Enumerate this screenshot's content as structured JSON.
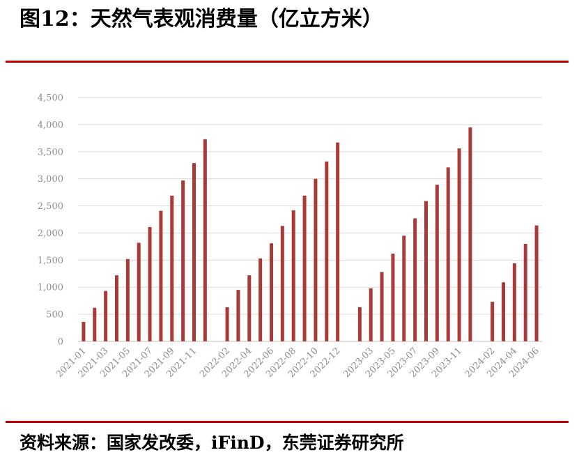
{
  "title": "图12：天然气表观消费量（亿立方米）",
  "source": "资料来源：国家发改委，iFinD，东莞证券研究所",
  "colors": {
    "bar": "#a83a3a",
    "rule": "#c00000",
    "grid": "#d9d9d9",
    "axis": "#bfbfbf",
    "tick": "#8c8c8c"
  },
  "chart_data": {
    "type": "bar",
    "title": "图12：天然气表观消费量（亿立方米）",
    "xlabel": "",
    "ylabel": "",
    "ylim": [
      0,
      4500
    ],
    "yticks": [
      0,
      500,
      1000,
      1500,
      2000,
      2500,
      3000,
      3500,
      4000,
      4500
    ],
    "ytick_labels": [
      "0",
      "500",
      "1,000",
      "1,500",
      "2,000",
      "2,500",
      "3,000",
      "3,500",
      "4,000",
      "4,500"
    ],
    "grid": true,
    "legend": "none",
    "categories": [
      "2021-01",
      "2021-02",
      "2021-03",
      "2021-04",
      "2021-05",
      "2021-06",
      "2021-07",
      "2021-08",
      "2021-09",
      "2021-10",
      "2021-11",
      "2021-12",
      "2022-01",
      "2022-02",
      "2022-03",
      "2022-04",
      "2022-05",
      "2022-06",
      "2022-07",
      "2022-08",
      "2022-09",
      "2022-10",
      "2022-11",
      "2022-12",
      "2023-01",
      "2023-02",
      "2023-03",
      "2023-04",
      "2023-05",
      "2023-06",
      "2023-07",
      "2023-08",
      "2023-09",
      "2023-10",
      "2023-11",
      "2023-12",
      "2024-01",
      "2024-02",
      "2024-03",
      "2024-04",
      "2024-05",
      "2024-06"
    ],
    "xtick_labels": [
      "2021-01",
      "2021-03",
      "2021-05",
      "2021-07",
      "2021-09",
      "2021-11",
      "2022-02",
      "2022-04",
      "2022-06",
      "2022-08",
      "2022-10",
      "2022-12",
      "2023-03",
      "2023-05",
      "2023-07",
      "2023-09",
      "2023-11",
      "2024-02",
      "2024-04",
      "2024-06"
    ],
    "values": [
      360,
      620,
      930,
      1220,
      1520,
      1820,
      2110,
      2410,
      2690,
      2970,
      3290,
      3730,
      null,
      630,
      950,
      1220,
      1530,
      1810,
      2130,
      2420,
      2690,
      3000,
      3320,
      3670,
      null,
      630,
      980,
      1280,
      1620,
      1950,
      2270,
      2590,
      2890,
      3210,
      3560,
      3950,
      null,
      730,
      1090,
      1440,
      1800,
      2140
    ]
  }
}
